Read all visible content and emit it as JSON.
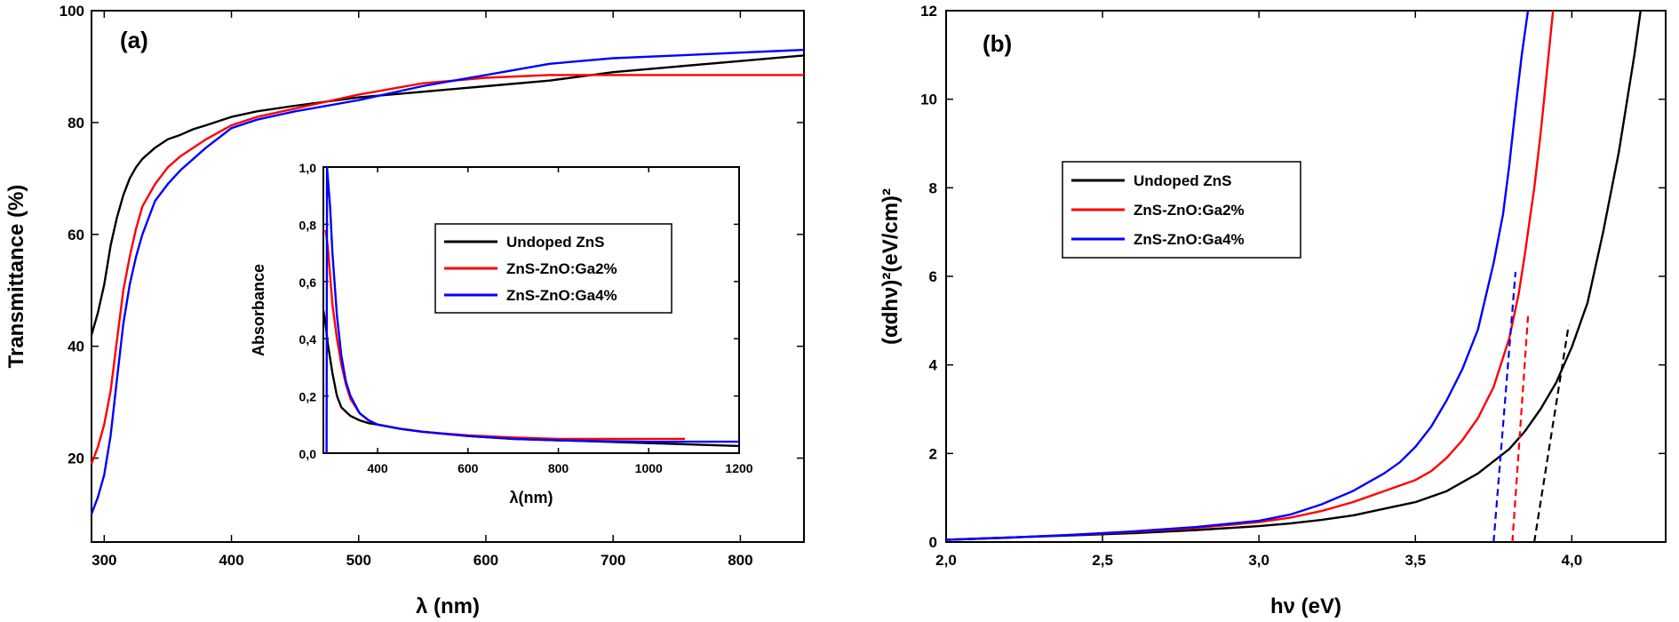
{
  "colors": {
    "undoped": "#000000",
    "ga2": "#ff0000",
    "ga4": "#0000ff"
  },
  "chart_data": [
    {
      "type": "line",
      "panel_label": "(a)",
      "xlabel": "λ (nm)",
      "ylabel": "Transmittance (%)",
      "xlim": [
        290,
        850
      ],
      "ylim": [
        5,
        100
      ],
      "xticks": [
        300,
        400,
        500,
        600,
        700,
        800
      ],
      "yticks": [
        20,
        40,
        60,
        80,
        100
      ],
      "legend_position": "inset",
      "series": [
        {
          "name": "Undoped ZnS",
          "color": "#000000",
          "x": [
            290,
            295,
            300,
            305,
            310,
            315,
            320,
            325,
            330,
            340,
            350,
            360,
            370,
            380,
            400,
            420,
            450,
            500,
            550,
            600,
            650,
            700,
            750,
            800,
            850
          ],
          "y": [
            42,
            46,
            51,
            58,
            63,
            67,
            70,
            72,
            73.5,
            75.5,
            77,
            77.8,
            78.8,
            79.5,
            81,
            82,
            83,
            84.5,
            85.5,
            86.5,
            87.5,
            89,
            90,
            91,
            92
          ]
        },
        {
          "name": "ZnS-ZnO:Ga2%",
          "color": "#ff0000",
          "x": [
            290,
            295,
            300,
            305,
            310,
            315,
            320,
            325,
            330,
            340,
            350,
            360,
            370,
            380,
            400,
            420,
            450,
            500,
            550,
            600,
            650,
            700,
            750,
            800,
            850
          ],
          "y": [
            19,
            22,
            26,
            32,
            41,
            50,
            56,
            61,
            65,
            69,
            72,
            74,
            75.5,
            77,
            79.5,
            81,
            82.5,
            85,
            87,
            88,
            88.5,
            88.5,
            88.5,
            88.5,
            88.5
          ]
        },
        {
          "name": "ZnS-ZnO:Ga4%",
          "color": "#0000ff",
          "x": [
            290,
            295,
            300,
            305,
            310,
            315,
            320,
            325,
            330,
            340,
            350,
            360,
            370,
            380,
            400,
            420,
            450,
            500,
            550,
            600,
            650,
            700,
            750,
            800,
            850
          ],
          "y": [
            10,
            13,
            17,
            24,
            34,
            44,
            51,
            56,
            60,
            66,
            69,
            71.5,
            73.5,
            75.5,
            79,
            80.5,
            82,
            84,
            86.5,
            88.5,
            90.5,
            91.5,
            92,
            92.5,
            93
          ]
        }
      ]
    },
    {
      "type": "line",
      "panel_label": "",
      "inset_of": "(a)",
      "xlabel": "λ(nm)",
      "ylabel": "Absorbance",
      "xlim": [
        280,
        1200
      ],
      "ylim": [
        0,
        1.0
      ],
      "xticks": [
        400,
        600,
        800,
        1000,
        1200
      ],
      "xtick_labels": [
        "400",
        "600",
        "800",
        "1000",
        "1200"
      ],
      "yticks": [
        0,
        0.2,
        0.4,
        0.6,
        0.8,
        1.0
      ],
      "ytick_labels": [
        "0,0",
        "0,2",
        "0,4",
        "0,6",
        "0,8",
        "1,0"
      ],
      "legend_position": "top-right",
      "series": [
        {
          "name": "Undoped ZnS",
          "color": "#000000",
          "x": [
            280,
            285,
            290,
            300,
            310,
            320,
            340,
            360,
            380,
            400,
            450,
            500,
            600,
            700,
            800,
            900,
            1000,
            1100,
            1200
          ],
          "y": [
            0.5,
            0.45,
            0.38,
            0.28,
            0.2,
            0.16,
            0.13,
            0.115,
            0.105,
            0.1,
            0.085,
            0.075,
            0.06,
            0.05,
            0.045,
            0.04,
            0.035,
            0.03,
            0.025
          ]
        },
        {
          "name": "ZnS-ZnO:Ga2%",
          "color": "#ff0000",
          "x": [
            285,
            290,
            295,
            300,
            310,
            320,
            330,
            340,
            360,
            380,
            400,
            450,
            500,
            600,
            700,
            800,
            900,
            1000,
            1080
          ],
          "y": [
            0.78,
            0.72,
            0.62,
            0.52,
            0.4,
            0.31,
            0.24,
            0.19,
            0.14,
            0.115,
            0.1,
            0.085,
            0.075,
            0.062,
            0.055,
            0.05,
            0.05,
            0.05,
            0.05
          ]
        },
        {
          "name": "ZnS-ZnO:Ga4%",
          "color": "#0000ff",
          "x": [
            287,
            288,
            290,
            295,
            300,
            310,
            320,
            330,
            340,
            360,
            380,
            400,
            450,
            500,
            600,
            700,
            800,
            900,
            1000,
            1100,
            1200
          ],
          "y": [
            0.0,
            1.0,
            0.96,
            0.86,
            0.7,
            0.48,
            0.34,
            0.25,
            0.2,
            0.14,
            0.115,
            0.1,
            0.085,
            0.075,
            0.06,
            0.05,
            0.045,
            0.042,
            0.04,
            0.04,
            0.04
          ]
        }
      ]
    },
    {
      "type": "line",
      "panel_label": "(b)",
      "xlabel": "hν (eV)",
      "ylabel": "(αdhν)²(eV/cm)²",
      "xlim": [
        2.0,
        4.3
      ],
      "ylim": [
        0,
        12
      ],
      "xticks": [
        2.0,
        2.5,
        3.0,
        3.5,
        4.0
      ],
      "xtick_labels": [
        "2,0",
        "2,5",
        "3,0",
        "3,5",
        "4,0"
      ],
      "yticks": [
        0,
        2,
        4,
        6,
        8,
        10,
        12
      ],
      "legend_position": "middle-left",
      "series": [
        {
          "name": "Undoped ZnS",
          "color": "#000000",
          "x": [
            2.0,
            2.2,
            2.4,
            2.6,
            2.8,
            3.0,
            3.1,
            3.2,
            3.3,
            3.4,
            3.5,
            3.6,
            3.7,
            3.8,
            3.85,
            3.9,
            3.95,
            4.0,
            4.05,
            4.1,
            4.15,
            4.2,
            4.22
          ],
          "y": [
            0.05,
            0.1,
            0.15,
            0.2,
            0.27,
            0.36,
            0.42,
            0.5,
            0.6,
            0.75,
            0.9,
            1.15,
            1.55,
            2.1,
            2.5,
            3.0,
            3.6,
            4.4,
            5.4,
            7.0,
            8.8,
            11.0,
            12.0
          ]
        },
        {
          "name": "ZnS-ZnO:Ga2%",
          "color": "#ff0000",
          "x": [
            2.0,
            2.2,
            2.4,
            2.6,
            2.8,
            3.0,
            3.1,
            3.2,
            3.3,
            3.4,
            3.5,
            3.55,
            3.6,
            3.65,
            3.7,
            3.75,
            3.8,
            3.83,
            3.85,
            3.88,
            3.9,
            3.92,
            3.94
          ],
          "y": [
            0.05,
            0.1,
            0.16,
            0.23,
            0.32,
            0.45,
            0.55,
            0.7,
            0.9,
            1.15,
            1.4,
            1.6,
            1.9,
            2.3,
            2.8,
            3.5,
            4.6,
            5.6,
            6.5,
            8.0,
            9.2,
            10.6,
            12.0
          ]
        },
        {
          "name": "ZnS-ZnO:Ga4%",
          "color": "#0000ff",
          "x": [
            2.0,
            2.2,
            2.4,
            2.6,
            2.8,
            3.0,
            3.1,
            3.2,
            3.3,
            3.4,
            3.45,
            3.5,
            3.55,
            3.6,
            3.65,
            3.7,
            3.75,
            3.78,
            3.8,
            3.82,
            3.84,
            3.86
          ],
          "y": [
            0.05,
            0.1,
            0.16,
            0.24,
            0.34,
            0.48,
            0.62,
            0.85,
            1.15,
            1.55,
            1.8,
            2.15,
            2.6,
            3.2,
            3.9,
            4.8,
            6.3,
            7.4,
            8.5,
            9.8,
            11.0,
            12.0
          ]
        }
      ],
      "tangents": [
        {
          "color": "#000000",
          "x": [
            3.88,
            3.99
          ],
          "y": [
            0,
            4.9
          ]
        },
        {
          "color": "#ff0000",
          "x": [
            3.81,
            3.86
          ],
          "y": [
            0,
            5.1
          ]
        },
        {
          "color": "#0000ff",
          "x": [
            3.75,
            3.82
          ],
          "y": [
            0,
            6.1
          ]
        }
      ]
    }
  ]
}
